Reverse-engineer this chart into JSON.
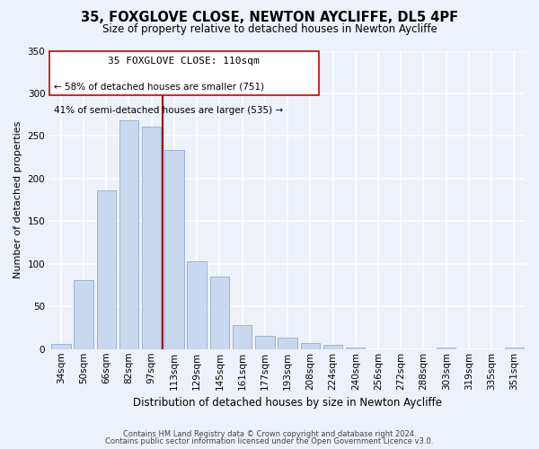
{
  "title": "35, FOXGLOVE CLOSE, NEWTON AYCLIFFE, DL5 4PF",
  "subtitle": "Size of property relative to detached houses in Newton Aycliffe",
  "xlabel": "Distribution of detached houses by size in Newton Aycliffe",
  "ylabel": "Number of detached properties",
  "bar_color": "#c8d8ee",
  "bar_edge_color": "#9ab4d4",
  "categories": [
    "34sqm",
    "50sqm",
    "66sqm",
    "82sqm",
    "97sqm",
    "113sqm",
    "129sqm",
    "145sqm",
    "161sqm",
    "177sqm",
    "193sqm",
    "208sqm",
    "224sqm",
    "240sqm",
    "256sqm",
    "272sqm",
    "288sqm",
    "303sqm",
    "319sqm",
    "335sqm",
    "351sqm"
  ],
  "values": [
    6,
    81,
    186,
    268,
    261,
    234,
    103,
    85,
    28,
    16,
    13,
    7,
    5,
    2,
    0,
    0,
    0,
    2,
    0,
    0,
    2
  ],
  "vline_color": "#990000",
  "annotation_title": "35 FOXGLOVE CLOSE: 110sqm",
  "annotation_line1": "← 58% of detached houses are smaller (751)",
  "annotation_line2": "41% of semi-detached houses are larger (535) →",
  "annotation_box_color": "#ffffff",
  "annotation_box_edge": "#cc0000",
  "ylim": [
    0,
    350
  ],
  "yticks": [
    0,
    50,
    100,
    150,
    200,
    250,
    300,
    350
  ],
  "footer1": "Contains HM Land Registry data © Crown copyright and database right 2024.",
  "footer2": "Contains public sector information licensed under the Open Government Licence v3.0.",
  "background_color": "#edf1f9",
  "grid_color": "#ffffff",
  "title_fontsize": 10.5,
  "subtitle_fontsize": 8.5,
  "ylabel_fontsize": 8,
  "xlabel_fontsize": 8.5,
  "tick_fontsize": 7.5,
  "ann_title_fontsize": 8,
  "ann_text_fontsize": 7.5
}
